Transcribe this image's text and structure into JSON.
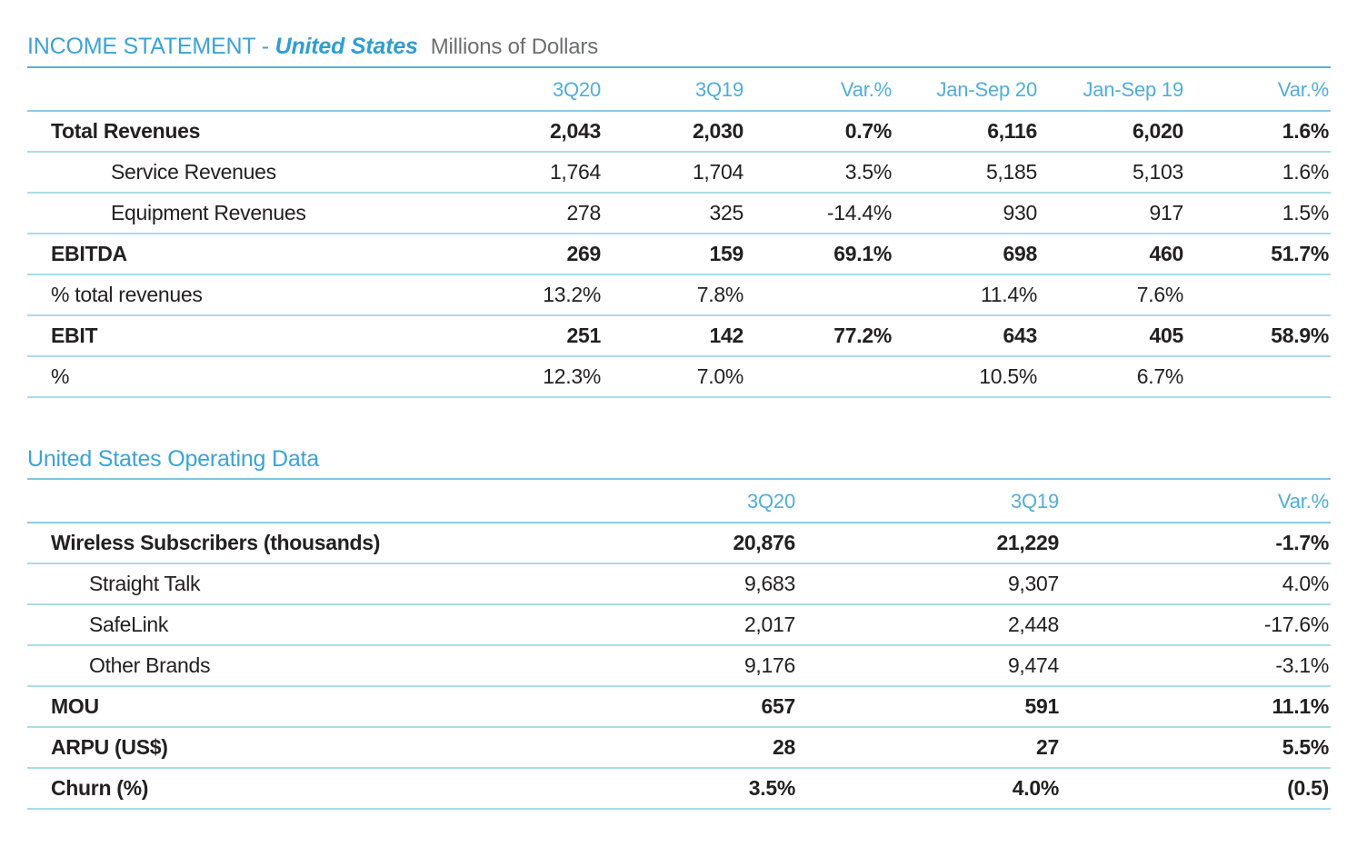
{
  "colors": {
    "accent_blue": "#3ba3d5",
    "header_blue": "#4fadda",
    "rule_light": "#a9dce7",
    "rule_medium": "#8ecbe0",
    "rule_title": "#55b1d9",
    "text_dark": "#232021",
    "text_gray": "#6d6e71"
  },
  "income_statement": {
    "title_prefix": "INCOME STATEMENT - ",
    "title_region": "United States",
    "title_note": "Millions of Dollars",
    "columns": [
      "",
      "3Q20",
      "3Q19",
      "Var.%",
      "Jan-Sep 20",
      "Jan-Sep 19",
      "Var.%"
    ],
    "rows": [
      {
        "label": "Total Revenues",
        "bold": true,
        "indent": false,
        "values": [
          "2,043",
          "2,030",
          "0.7%",
          "6,116",
          "6,020",
          "1.6%"
        ]
      },
      {
        "label": "Service Revenues",
        "bold": false,
        "indent": true,
        "values": [
          "1,764",
          "1,704",
          "3.5%",
          "5,185",
          "5,103",
          "1.6%"
        ]
      },
      {
        "label": "Equipment Revenues",
        "bold": false,
        "indent": true,
        "values": [
          "278",
          "325",
          "-14.4%",
          "930",
          "917",
          "1.5%"
        ]
      },
      {
        "label": "EBITDA",
        "bold": true,
        "indent": false,
        "values": [
          "269",
          "159",
          "69.1%",
          "698",
          "460",
          "51.7%"
        ]
      },
      {
        "label": "% total revenues",
        "bold": false,
        "indent": false,
        "values": [
          "13.2%",
          "7.8%",
          "",
          "11.4%",
          "7.6%",
          ""
        ]
      },
      {
        "label": "EBIT",
        "bold": true,
        "indent": false,
        "values": [
          "251",
          "142",
          "77.2%",
          "643",
          "405",
          "58.9%"
        ]
      },
      {
        "label": "%",
        "bold": false,
        "indent": false,
        "values": [
          "12.3%",
          "7.0%",
          "",
          "10.5%",
          "6.7%",
          ""
        ]
      }
    ]
  },
  "operating_data": {
    "title": "United States Operating Data",
    "columns": [
      "",
      "3Q20",
      "3Q19",
      "Var.%"
    ],
    "rows": [
      {
        "label": "Wireless Subscribers (thousands)",
        "bold": true,
        "indent": false,
        "values": [
          "20,876",
          "21,229",
          "-1.7%"
        ]
      },
      {
        "label": "Straight Talk",
        "bold": false,
        "indent": true,
        "values": [
          "9,683",
          "9,307",
          "4.0%"
        ]
      },
      {
        "label": "SafeLink",
        "bold": false,
        "indent": true,
        "values": [
          "2,017",
          "2,448",
          "-17.6%"
        ]
      },
      {
        "label": "Other Brands",
        "bold": false,
        "indent": true,
        "values": [
          "9,176",
          "9,474",
          "-3.1%"
        ]
      },
      {
        "label": "MOU",
        "bold": true,
        "indent": false,
        "values": [
          "657",
          "591",
          "11.1%"
        ]
      },
      {
        "label": "ARPU (US$)",
        "bold": true,
        "indent": false,
        "values": [
          "28",
          "27",
          "5.5%"
        ]
      },
      {
        "label": "Churn (%)",
        "bold": true,
        "indent": false,
        "values": [
          "3.5%",
          "4.0%",
          "(0.5)"
        ]
      }
    ]
  }
}
